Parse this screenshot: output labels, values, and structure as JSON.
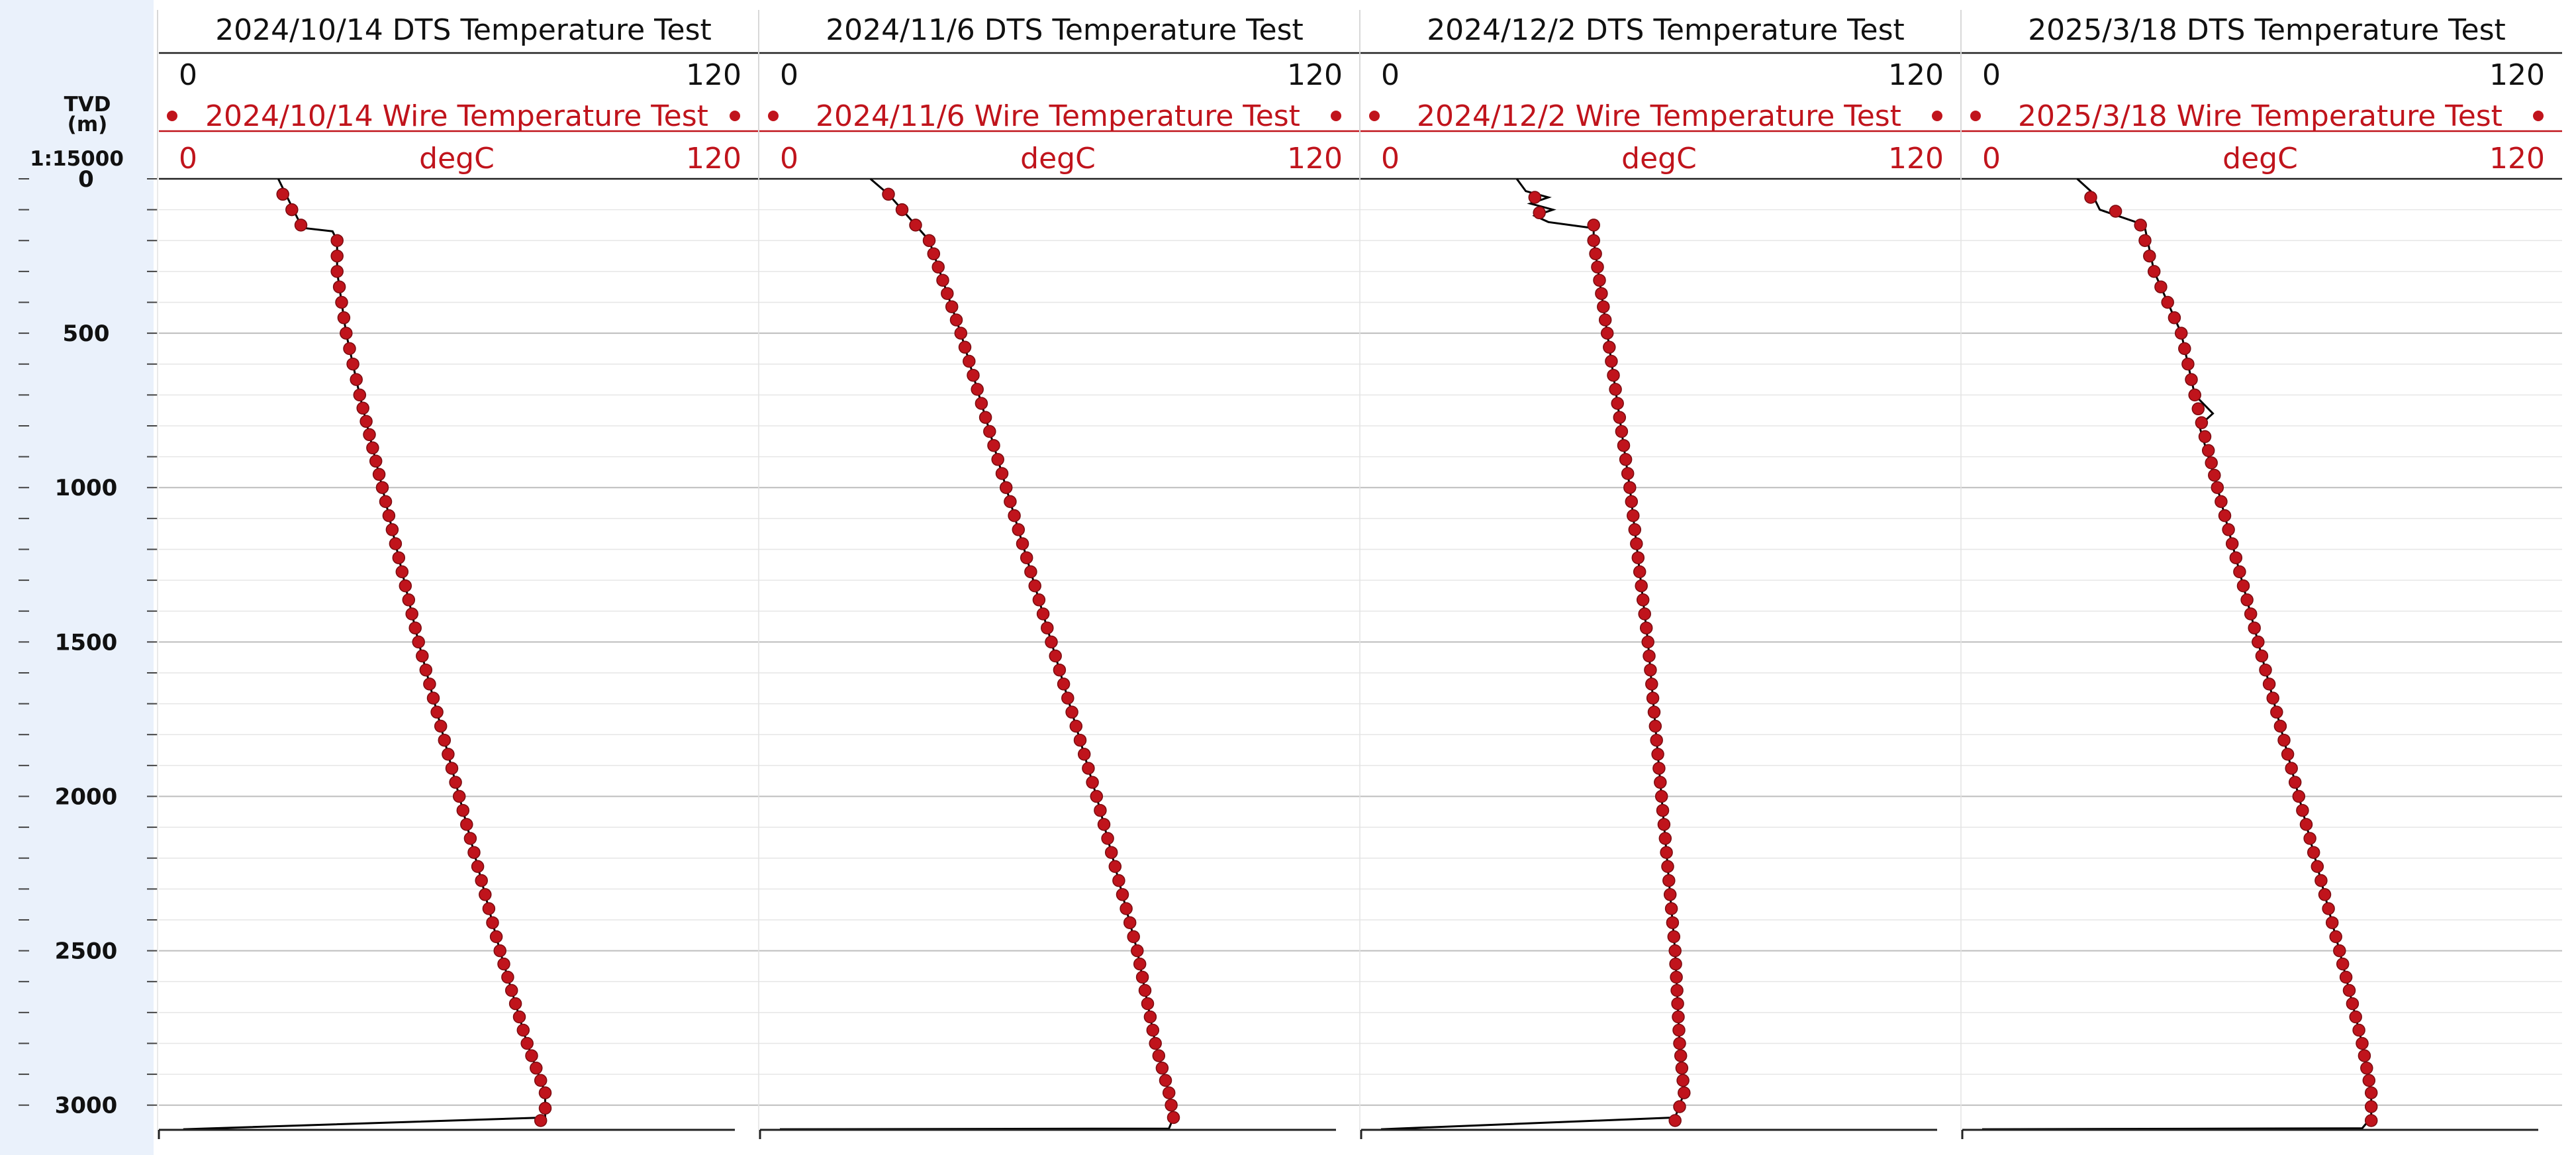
{
  "depth_axis": {
    "title_line1": "TVD",
    "title_line2": "(m)",
    "scale": "1:15000",
    "ticks": [
      "0",
      "500",
      "1000",
      "1500",
      "2000",
      "2500",
      "3000"
    ]
  },
  "colors": {
    "dts_line": "#000000",
    "wire_marker": "#c0141c",
    "wire_text": "#c0141c",
    "grid_major": "#bdbdbd",
    "grid_minor": "#e6e6e6",
    "depth_strip": "#eaf1fb"
  },
  "chart_data": [
    {
      "type": "line",
      "title": "2024/10/14  DTS Temperature Test",
      "x_axis": {
        "min": 0,
        "max": 120,
        "min_label": "0",
        "max_label": "120",
        "unit": "degC"
      },
      "y_axis": {
        "label": "TVD (m)",
        "min": 0,
        "max": 3080,
        "reversed": true
      },
      "series": [
        {
          "name": "2024/10/14  DTS Temperature Test",
          "style": "black line",
          "depth": [
            0,
            150,
            160,
            170,
            200,
            300,
            500,
            700,
            1000,
            1500,
            2000,
            2500,
            2800,
            2960,
            3040,
            3078
          ],
          "temperature": [
            22,
            27,
            28,
            34,
            35,
            35,
            37,
            40,
            45,
            53,
            62,
            71,
            77,
            81,
            81,
            1
          ]
        },
        {
          "name": "2024/10/14 Wire Temperature Test",
          "style": "red dots",
          "depth": [
            50,
            150,
            200,
            300,
            500,
            700,
            1000,
            1500,
            2000,
            2500,
            2800,
            2960,
            3010,
            3050
          ],
          "temperature": [
            23,
            27,
            35,
            35,
            37,
            40,
            45,
            53,
            62,
            71,
            77,
            81,
            81,
            80
          ]
        }
      ]
    },
    {
      "type": "line",
      "title": "2024/11/6  DTS Temperature Test",
      "x_axis": {
        "min": 0,
        "max": 120,
        "min_label": "0",
        "max_label": "120",
        "unit": "degC"
      },
      "y_axis": {
        "label": "TVD (m)",
        "min": 0,
        "max": 3080,
        "reversed": true
      },
      "series": [
        {
          "name": "2024/11/6  DTS Temperature Test",
          "style": "black line",
          "depth": [
            0,
            50,
            200,
            500,
            1000,
            1500,
            2000,
            2500,
            2800,
            2960,
            3040,
            3076,
            3078
          ],
          "temperature": [
            20,
            24,
            33,
            40,
            50,
            60,
            70,
            79,
            83,
            86,
            87,
            86,
            0
          ]
        },
        {
          "name": "2024/11/6 Wire Temperature Test",
          "style": "red dots",
          "depth": [
            50,
            200,
            500,
            1000,
            1500,
            2000,
            2500,
            2800,
            2960,
            3040
          ],
          "temperature": [
            24,
            33,
            40,
            50,
            60,
            70,
            79,
            83,
            86,
            87
          ]
        }
      ]
    },
    {
      "type": "line",
      "title": "2024/12/2  DTS Temperature Test",
      "x_axis": {
        "min": 0,
        "max": 120,
        "min_label": "0",
        "max_label": "120",
        "unit": "degC"
      },
      "y_axis": {
        "label": "TVD (m)",
        "min": 0,
        "max": 3080,
        "reversed": true
      },
      "series": [
        {
          "name": "2024/12/2  DTS Temperature Test",
          "style": "black line",
          "depth": [
            0,
            40,
            60,
            80,
            100,
            120,
            140,
            160,
            200,
            500,
            1000,
            1500,
            2000,
            2500,
            2800,
            2960,
            3040,
            3078
          ],
          "temperature": [
            30,
            32,
            37,
            33,
            38,
            34,
            37,
            47,
            47,
            50,
            55,
            59,
            62,
            65,
            66,
            67,
            65,
            0
          ]
        },
        {
          "name": "2024/12/2 Wire Temperature Test",
          "style": "red dots",
          "depth": [
            60,
            110,
            150,
            200,
            500,
            1000,
            1500,
            2000,
            2500,
            2800,
            2960,
            3050
          ],
          "temperature": [
            34,
            35,
            47,
            47,
            50,
            55,
            59,
            62,
            65,
            66,
            67,
            65
          ]
        }
      ]
    },
    {
      "type": "line",
      "title": "2025/3/18  DTS Temperature Test",
      "x_axis": {
        "min": 0,
        "max": 120,
        "min_label": "0",
        "max_label": "120",
        "unit": "degC"
      },
      "y_axis": {
        "label": "TVD (m)",
        "min": 0,
        "max": 3080,
        "reversed": true
      },
      "series": [
        {
          "name": "2025/3/18  DTS Temperature Test",
          "style": "black line",
          "depth": [
            0,
            40,
            100,
            140,
            160,
            300,
            500,
            700,
            760,
            800,
            1000,
            1500,
            2000,
            2500,
            2800,
            2960,
            3040,
            3075,
            3078
          ],
          "temperature": [
            21,
            24,
            26,
            34,
            36,
            38,
            44,
            47,
            51,
            48,
            52,
            61,
            70,
            79,
            84,
            86,
            86,
            84,
            0
          ]
        },
        {
          "name": "2025/3/18 Wire Temperature Test",
          "style": "red dots",
          "depth": [
            60,
            150,
            300,
            500,
            700,
            880,
            1000,
            1500,
            2000,
            2500,
            2800,
            2960,
            3050
          ],
          "temperature": [
            24,
            35,
            38,
            44,
            47,
            50,
            52,
            61,
            70,
            79,
            84,
            86,
            86
          ]
        }
      ]
    }
  ]
}
